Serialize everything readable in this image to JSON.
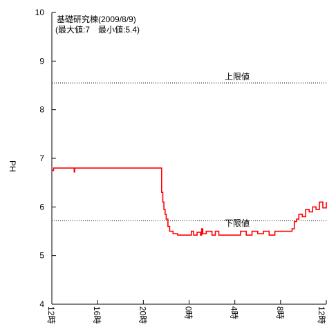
{
  "chart_data": {
    "type": "line",
    "title": "基礎研究棟(2009/8/9)",
    "subtitle": "(最大値:7　最小値:5.4)",
    "ylabel": "PH",
    "xlabel": "",
    "ylim": [
      4,
      10
    ],
    "yticks": [
      "4",
      "5",
      "6",
      "7",
      "8",
      "9",
      "10"
    ],
    "xlim": [
      0,
      24
    ],
    "x_tick_values": [
      0,
      4,
      8,
      12,
      16,
      20,
      24
    ],
    "xticks": [
      "12時",
      "16時",
      "20時",
      "0時",
      "4時",
      "8時",
      "12時"
    ],
    "grid": false,
    "reference_lines": [
      {
        "label": "上限値",
        "y": 8.55,
        "color": "#000000"
      },
      {
        "label": "下限値",
        "y": 5.72,
        "color": "#000000"
      }
    ],
    "series": [
      {
        "color": "#ff0000",
        "x": [
          0,
          0.15,
          0.2,
          1.9,
          1.95,
          2.0,
          2.05,
          9.55,
          9.6,
          9.7,
          9.8,
          9.9,
          10.0,
          10.15,
          10.3,
          10.6,
          11.0,
          11.5,
          12.0,
          12.2,
          12.4,
          12.7,
          13.0,
          13.1,
          13.2,
          13.5,
          14.0,
          14.3,
          14.6,
          15.0,
          15.5,
          16.0,
          16.5,
          17.0,
          17.5,
          18.0,
          18.5,
          19.0,
          19.5,
          20.0,
          20.5,
          20.8,
          21.0,
          21.2,
          21.4,
          21.6,
          21.9,
          22.2,
          22.5,
          22.8,
          23.1,
          23.4,
          23.7,
          24.0
        ],
        "values": [
          6.75,
          6.8,
          6.8,
          6.8,
          6.72,
          6.8,
          6.8,
          6.8,
          6.3,
          6.1,
          5.95,
          5.85,
          5.75,
          5.6,
          5.5,
          5.45,
          5.42,
          5.42,
          5.42,
          5.5,
          5.42,
          5.48,
          5.42,
          5.55,
          5.45,
          5.5,
          5.42,
          5.5,
          5.42,
          5.42,
          5.42,
          5.42,
          5.5,
          5.42,
          5.5,
          5.45,
          5.5,
          5.42,
          5.5,
          5.5,
          5.5,
          5.5,
          5.55,
          5.7,
          5.75,
          5.85,
          5.8,
          5.95,
          5.9,
          6.0,
          5.95,
          6.1,
          5.98,
          6.1
        ]
      }
    ]
  }
}
